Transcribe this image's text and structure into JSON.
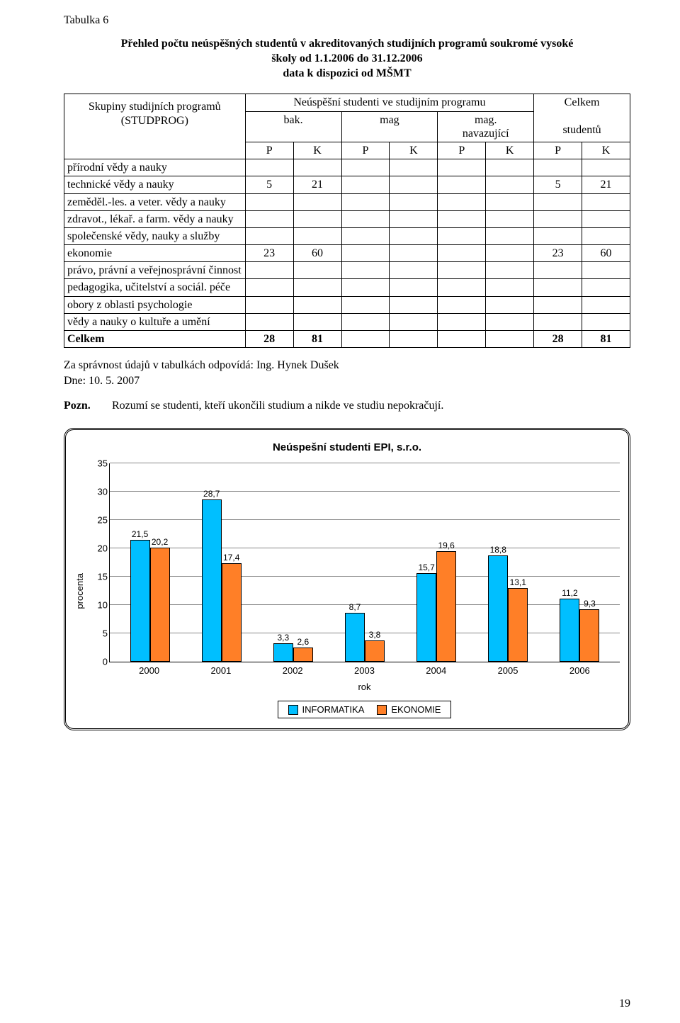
{
  "table_label": "Tabulka  6",
  "heading_line1": "Přehled počtu neúspěšných studentů v akreditovaných studijních programů soukromé vysoké",
  "heading_line2": "školy od 1.1.2006 do 31.12.2006",
  "heading_line3": "data k dispozici od MŠMT",
  "header": {
    "groups_col_l1": "Skupiny studijních programů",
    "groups_col_l2": "(STUDPROG)",
    "top_mid": "Neúspěšní studenti ve studijním programu",
    "top_right_l1": "Celkem",
    "top_right_l2": "studentů",
    "sub_bak": "bak.",
    "sub_mag": "mag",
    "sub_magnav_l1": "mag.",
    "sub_magnav_l2": "navazující",
    "pk_p": "P",
    "pk_k": "K"
  },
  "rows": [
    {
      "label": "přírodní vědy a nauky",
      "cells": [
        "",
        "",
        "",
        "",
        "",
        "",
        "",
        ""
      ]
    },
    {
      "label": "technické vědy a nauky",
      "cells": [
        "5",
        "21",
        "",
        "",
        "",
        "",
        "5",
        "21"
      ]
    },
    {
      "label": "zeměděl.-les. a veter. vědy a nauky",
      "cells": [
        "",
        "",
        "",
        "",
        "",
        "",
        "",
        ""
      ]
    },
    {
      "label": "zdravot., lékař. a farm. vědy a nauky",
      "cells": [
        "",
        "",
        "",
        "",
        "",
        "",
        "",
        ""
      ]
    },
    {
      "label": "společenské vědy, nauky a služby",
      "cells": [
        "",
        "",
        "",
        "",
        "",
        "",
        "",
        ""
      ]
    },
    {
      "label": "ekonomie",
      "cells": [
        "23",
        "60",
        "",
        "",
        "",
        "",
        "23",
        "60"
      ]
    },
    {
      "label": "právo, právní a veřejnosprávní činnost",
      "cells": [
        "",
        "",
        "",
        "",
        "",
        "",
        "",
        ""
      ]
    },
    {
      "label": "pedagogika, učitelství a sociál. péče",
      "cells": [
        "",
        "",
        "",
        "",
        "",
        "",
        "",
        ""
      ]
    },
    {
      "label": "obory z oblasti psychologie",
      "cells": [
        "",
        "",
        "",
        "",
        "",
        "",
        "",
        ""
      ]
    },
    {
      "label": "vědy a nauky o kultuře a umění",
      "cells": [
        "",
        "",
        "",
        "",
        "",
        "",
        "",
        ""
      ]
    }
  ],
  "total_row": {
    "label": "Celkem",
    "cells": [
      "28",
      "81",
      "",
      "",
      "",
      "",
      "28",
      "81"
    ]
  },
  "signature_l1": "Za správnost údajů v tabulkách odpovídá: Ing. Hynek Dušek",
  "signature_l2": "Dne: 10. 5. 2007",
  "note_label": "Pozn.",
  "note_text": "Rozumí se studenti, kteří ukončili studium a nikde ve studiu nepokračují.",
  "chart": {
    "type": "bar",
    "title": "Neúspešní studenti EPI, s.r.o.",
    "ylabel": "procenta",
    "xlabel": "rok",
    "ymax": 35,
    "ytick_step": 5,
    "yticks": [
      0,
      5,
      10,
      15,
      20,
      25,
      30,
      35
    ],
    "categories": [
      "2000",
      "2001",
      "2002",
      "2003",
      "2004",
      "2005",
      "2006"
    ],
    "series": [
      {
        "name": "INFORMATIKA",
        "color": "#00bfff",
        "values": [
          21.5,
          28.7,
          3.3,
          8.7,
          15.7,
          18.8,
          11.2
        ]
      },
      {
        "name": "EKONOMIE",
        "color": "#ff7f27",
        "values": [
          20.2,
          17.4,
          2.6,
          3.8,
          19.6,
          13.1,
          9.3
        ]
      }
    ],
    "grid_color": "#888888",
    "axis_color": "#000000",
    "background": "#ffffff",
    "label_fontsize": 12
  },
  "page_number": "19"
}
